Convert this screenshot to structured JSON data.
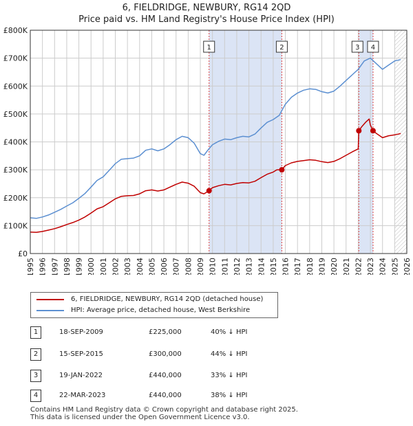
{
  "header": {
    "title": "6, FIELDRIDGE, NEWBURY, RG14 2QD",
    "subtitle": "Price paid vs. HM Land Registry's House Price Index (HPI)"
  },
  "colors": {
    "hpi_line": "#5b8fd1",
    "price_line": "#c00000",
    "shade": "#dbe4f5",
    "marker_vline": "#dd4444",
    "grid": "#cccccc"
  },
  "chart_data": {
    "type": "line",
    "xlim": [
      1995,
      2026
    ],
    "ylim": [
      0,
      800000
    ],
    "y_ticks": [
      0,
      100000,
      200000,
      300000,
      400000,
      500000,
      600000,
      700000,
      800000
    ],
    "y_tick_labels": [
      "£0",
      "£100K",
      "£200K",
      "£300K",
      "£400K",
      "£500K",
      "£600K",
      "£700K",
      "£800K"
    ],
    "x_ticks": [
      "1995",
      "1996",
      "1997",
      "1998",
      "1999",
      "2000",
      "2001",
      "2002",
      "2003",
      "2004",
      "2005",
      "2006",
      "2007",
      "2008",
      "2009",
      "2010",
      "2011",
      "2012",
      "2013",
      "2014",
      "2015",
      "2016",
      "2017",
      "2018",
      "2019",
      "2020",
      "2021",
      "2022",
      "2023",
      "2024",
      "2025",
      "2026"
    ],
    "grid": true,
    "shaded_ranges": [
      [
        2009.72,
        2015.71
      ],
      [
        2022.05,
        2023.22
      ]
    ],
    "hatch_from": 2025.0,
    "series": [
      {
        "name": "HPI: Average price, detached house, West Berkshire",
        "x": [
          1995.0,
          1995.5,
          1996.0,
          1996.5,
          1997.0,
          1997.5,
          1998.0,
          1998.5,
          1999.0,
          1999.5,
          2000.0,
          2000.5,
          2001.0,
          2001.5,
          2002.0,
          2002.5,
          2003.0,
          2003.5,
          2004.0,
          2004.5,
          2005.0,
          2005.5,
          2006.0,
          2006.5,
          2007.0,
          2007.5,
          2008.0,
          2008.5,
          2009.0,
          2009.3,
          2009.7,
          2010.0,
          2010.5,
          2011.0,
          2011.5,
          2012.0,
          2012.5,
          2013.0,
          2013.5,
          2014.0,
          2014.5,
          2015.0,
          2015.5,
          2016.0,
          2016.5,
          2017.0,
          2017.5,
          2018.0,
          2018.5,
          2019.0,
          2019.5,
          2020.0,
          2020.5,
          2021.0,
          2021.5,
          2022.0,
          2022.5,
          2023.0,
          2023.5,
          2024.0,
          2024.5,
          2025.0,
          2025.5
        ],
        "values": [
          128000,
          126000,
          131000,
          138000,
          148000,
          158000,
          170000,
          182000,
          198000,
          215000,
          238000,
          262000,
          275000,
          298000,
          322000,
          338000,
          340000,
          342000,
          350000,
          370000,
          375000,
          368000,
          375000,
          390000,
          408000,
          420000,
          415000,
          395000,
          358000,
          352000,
          375000,
          390000,
          402000,
          410000,
          408000,
          415000,
          420000,
          418000,
          428000,
          450000,
          470000,
          480000,
          495000,
          535000,
          560000,
          575000,
          585000,
          590000,
          588000,
          580000,
          575000,
          582000,
          600000,
          620000,
          640000,
          660000,
          690000,
          700000,
          680000,
          660000,
          675000,
          690000,
          695000
        ]
      },
      {
        "name": "6, FIELDRIDGE, NEWBURY, RG14 2QD (detached house)",
        "x": [
          1995.0,
          1995.5,
          1996.0,
          1996.5,
          1997.0,
          1997.5,
          1998.0,
          1998.5,
          1999.0,
          1999.5,
          2000.0,
          2000.5,
          2001.0,
          2001.5,
          2002.0,
          2002.5,
          2003.0,
          2003.5,
          2004.0,
          2004.5,
          2005.0,
          2005.5,
          2006.0,
          2006.5,
          2007.0,
          2007.5,
          2008.0,
          2008.5,
          2009.0,
          2009.3,
          2009.72,
          2010.0,
          2010.5,
          2011.0,
          2011.5,
          2012.0,
          2012.5,
          2013.0,
          2013.5,
          2014.0,
          2014.5,
          2015.0,
          2015.3,
          2015.71,
          2016.0,
          2016.5,
          2017.0,
          2017.5,
          2018.0,
          2018.5,
          2019.0,
          2019.5,
          2020.0,
          2020.5,
          2021.0,
          2021.5,
          2022.0,
          2022.05,
          2022.3,
          2022.6,
          2022.9,
          2023.0,
          2023.22,
          2023.5,
          2024.0,
          2024.5,
          2025.0,
          2025.5
        ],
        "values": [
          77000,
          76000,
          79000,
          84000,
          89000,
          96000,
          104000,
          111000,
          120000,
          131000,
          145000,
          160000,
          168000,
          182000,
          196000,
          205000,
          207000,
          208000,
          214000,
          225000,
          228000,
          224000,
          228000,
          238000,
          248000,
          256000,
          252000,
          241000,
          218000,
          214000,
          225000,
          236000,
          243000,
          248000,
          246000,
          251000,
          254000,
          253000,
          259000,
          272000,
          284000,
          292000,
          300000,
          300000,
          315000,
          325000,
          330000,
          333000,
          336000,
          334000,
          329000,
          326000,
          330000,
          340000,
          352000,
          364000,
          375000,
          440000,
          455000,
          470000,
          482000,
          460000,
          440000,
          430000,
          415000,
          422000,
          425000,
          430000
        ]
      }
    ],
    "sales": [
      {
        "label": "1",
        "date": "18-SEP-2009",
        "x": 2009.72,
        "price": 225000,
        "price_text": "£225,000",
        "hpi_text": "40% ↓ HPI"
      },
      {
        "label": "2",
        "date": "15-SEP-2015",
        "x": 2015.71,
        "price": 300000,
        "price_text": "£300,000",
        "hpi_text": "44% ↓ HPI"
      },
      {
        "label": "3",
        "date": "19-JAN-2022",
        "x": 2022.05,
        "price": 440000,
        "price_text": "£440,000",
        "hpi_text": "33% ↓ HPI"
      },
      {
        "label": "4",
        "date": "22-MAR-2023",
        "x": 2023.22,
        "price": 440000,
        "price_text": "£440,000",
        "hpi_text": "38% ↓ HPI"
      }
    ]
  },
  "legend": {
    "items": [
      {
        "label": "6, FIELDRIDGE, NEWBURY, RG14 2QD (detached house)"
      },
      {
        "label": "HPI: Average price, detached house, West Berkshire"
      }
    ]
  },
  "footer": {
    "line1": "Contains HM Land Registry data © Crown copyright and database right 2025.",
    "line2": "This data is licensed under the Open Government Licence v3.0."
  }
}
